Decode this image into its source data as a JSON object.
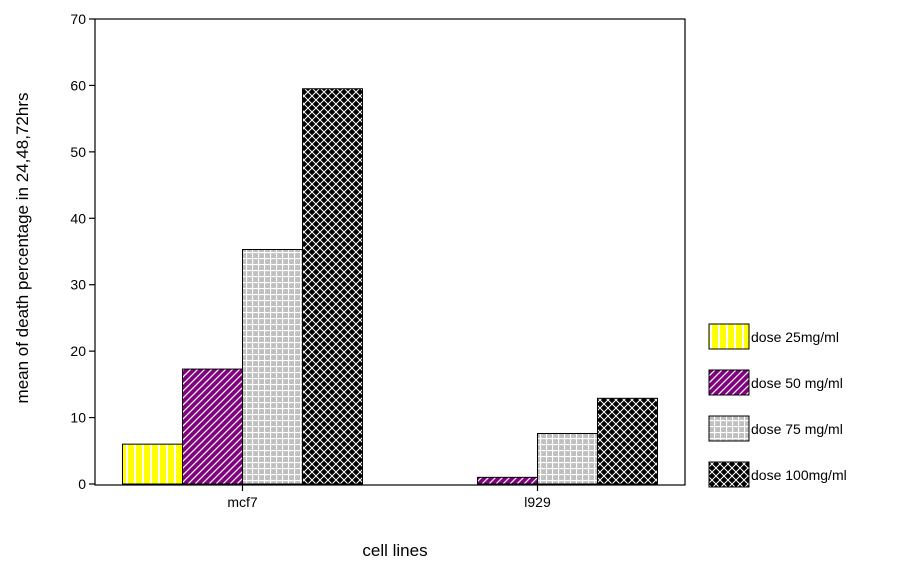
{
  "chart_data": {
    "type": "bar",
    "xlabel": "cell lines",
    "ylabel": "mean of death percentage in 24,48,72hrs",
    "categories": [
      "mcf7",
      "l929"
    ],
    "ylim": [
      0,
      70
    ],
    "yticks": [
      0,
      10,
      20,
      30,
      40,
      50,
      60,
      70
    ],
    "grid": false,
    "legend_position": "right",
    "series": [
      {
        "name": "dose 25mg/ml",
        "values": [
          6,
          0
        ],
        "color": "#ffff00",
        "pattern": "vertical-lines"
      },
      {
        "name": "dose 50 mg/ml",
        "values": [
          17.3,
          1
        ],
        "color": "#800080",
        "pattern": "diagonal-lines"
      },
      {
        "name": "dose 75 mg/ml",
        "values": [
          35.3,
          7.6
        ],
        "color": "#c0c0c0",
        "pattern": "grid"
      },
      {
        "name": "dose 100mg/ml",
        "values": [
          59.5,
          12.9
        ],
        "color": "#000000",
        "pattern": "crosshatch"
      }
    ]
  }
}
